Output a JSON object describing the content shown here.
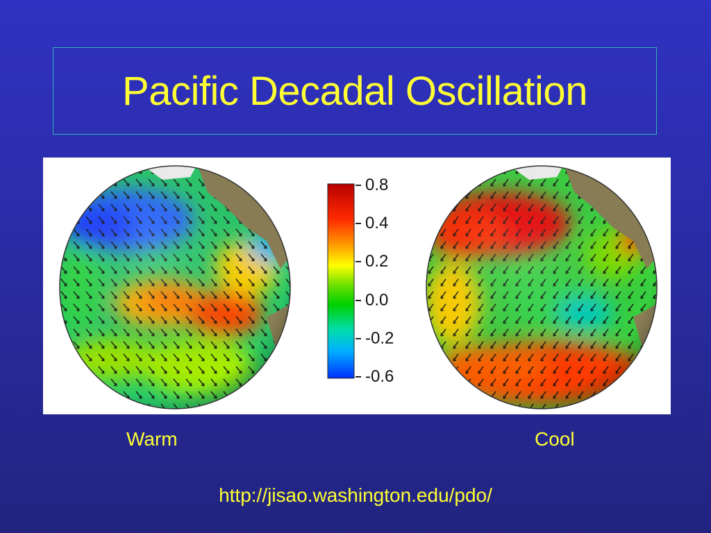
{
  "slide": {
    "title": "Pacific Decadal Oscillation",
    "captions": {
      "warm": "Warm",
      "cool": "Cool"
    },
    "source_url": "http://jisao.washington.edu/pdo/"
  },
  "colorbar": {
    "tick_labels": [
      "0.8",
      "0.4",
      "0.2",
      "0.0",
      "-0.2",
      "-0.6"
    ],
    "stops": [
      "#b80000",
      "#ff2a00",
      "#ffa000",
      "#ffff00",
      "#6ee000",
      "#00d000",
      "#00ddaa",
      "#00b0ff",
      "#0030ff"
    ]
  },
  "colors": {
    "background": "#2a2ca6",
    "title_text": "#ffff33",
    "title_border": "#2fb3b3",
    "land": "#8a7e55",
    "ocean_base": "#27c96a"
  },
  "figure": {
    "panels": [
      {
        "id": "warm",
        "icon": "globe-pacific-warm-phase"
      },
      {
        "id": "cool",
        "icon": "globe-pacific-cool-phase"
      }
    ],
    "overlay": "wind-stress-arrows"
  }
}
